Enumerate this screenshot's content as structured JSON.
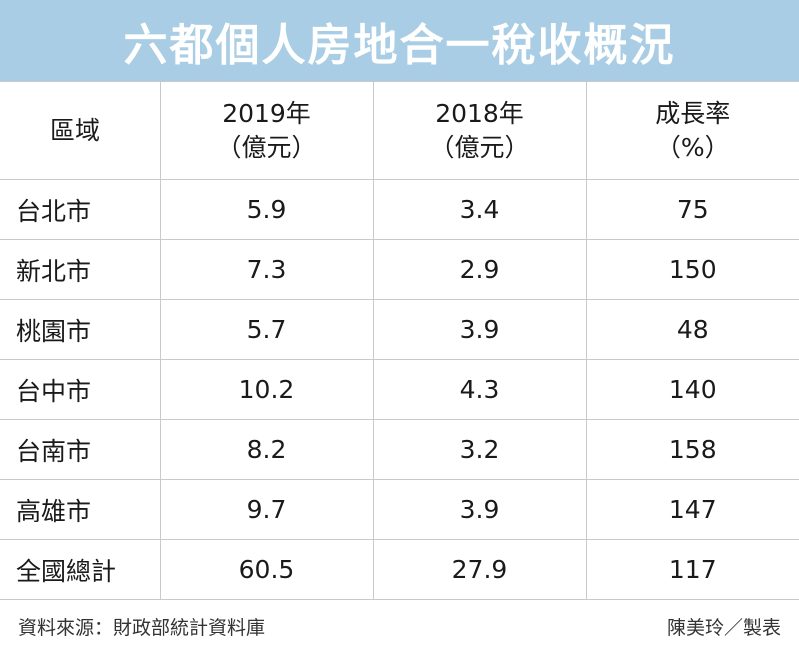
{
  "title": "六都個人房地合一稅收概況",
  "colors": {
    "title_bar": "#a8cde4",
    "title_text": "#ffffff",
    "grid": "#c9c9c9"
  },
  "chart_data": {
    "type": "table",
    "title": "六都個人房地合一稅收概況",
    "columns": [
      {
        "label": "區域",
        "unit": ""
      },
      {
        "label": "2019年",
        "unit": "（億元）"
      },
      {
        "label": "2018年",
        "unit": "（億元）"
      },
      {
        "label": "成長率",
        "unit": "（%）"
      }
    ],
    "rows": [
      {
        "region": "台北市",
        "y2019": "5.9",
        "y2018": "3.4",
        "growth": "75"
      },
      {
        "region": "新北市",
        "y2019": "7.3",
        "y2018": "2.9",
        "growth": "150"
      },
      {
        "region": "桃園市",
        "y2019": "5.7",
        "y2018": "3.9",
        "growth": "48"
      },
      {
        "region": "台中市",
        "y2019": "10.2",
        "y2018": "4.3",
        "growth": "140"
      },
      {
        "region": "台南市",
        "y2019": "8.2",
        "y2018": "3.2",
        "growth": "158"
      },
      {
        "region": "高雄市",
        "y2019": "9.7",
        "y2018": "3.9",
        "growth": "147"
      },
      {
        "region": "全國總計",
        "y2019": "60.5",
        "y2018": "27.9",
        "growth": "117"
      }
    ]
  },
  "footer": {
    "source": "資料來源：財政部統計資料庫",
    "credit": "陳美玲／製表"
  }
}
